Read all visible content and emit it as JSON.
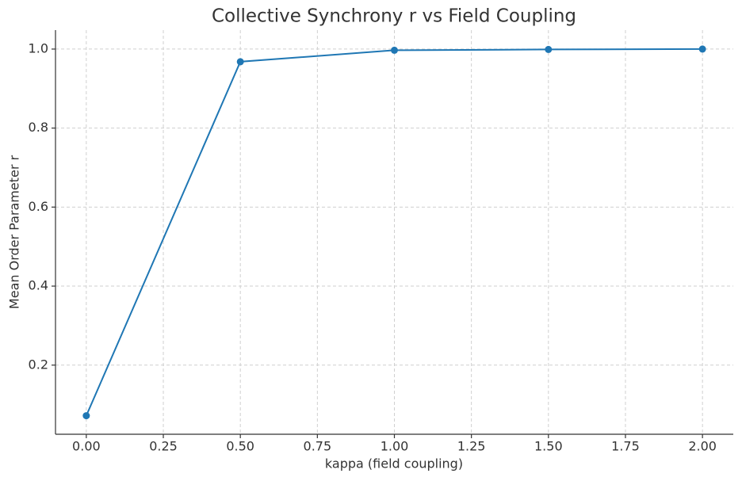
{
  "chart_data": {
    "type": "line",
    "title": "Collective Synchrony r vs Field Coupling",
    "x_label": "kappa (field coupling)",
    "y_label": "Mean Order Parameter r",
    "x": [
      0,
      0.5,
      1,
      1.5,
      2
    ],
    "series": [
      {
        "name": "r",
        "color": "#1f77b4",
        "values": [
          0.072,
          0.968,
          0.997,
          0.999,
          1.0
        ]
      }
    ],
    "xlim": [
      -0.1,
      2.1
    ],
    "ylim": [
      0.025,
      1.048
    ],
    "xticks": [
      {
        "value": 0,
        "label": "0.00"
      },
      {
        "value": 0.25,
        "label": "0.25"
      },
      {
        "value": 0.5,
        "label": "0.50"
      },
      {
        "value": 0.75,
        "label": "0.75"
      },
      {
        "value": 1,
        "label": "1.00"
      },
      {
        "value": 1.25,
        "label": "1.25"
      },
      {
        "value": 1.5,
        "label": "1.50"
      },
      {
        "value": 1.75,
        "label": "1.75"
      },
      {
        "value": 2,
        "label": "2.00"
      }
    ],
    "yticks": [
      0.2,
      0.4,
      0.6,
      0.8,
      {
        "value": 1,
        "label": "1.0"
      }
    ],
    "grid": true
  }
}
